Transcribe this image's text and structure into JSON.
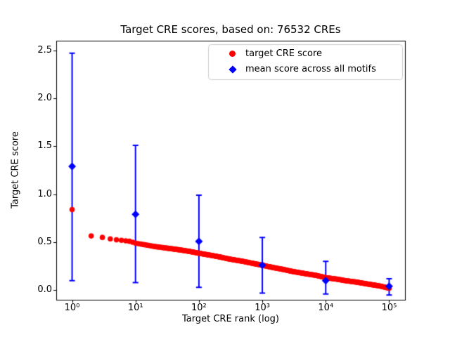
{
  "figure": {
    "title": "Target CRE scores, based on: 76532 CREs",
    "xlabel": "Target CRE rank (log)",
    "ylabel": "Target CRE score",
    "background": "#ffffff"
  },
  "legend": {
    "items": [
      {
        "label": "target CRE score",
        "marker": "circle",
        "color": "#ff0000"
      },
      {
        "label": "mean score across all motifs",
        "marker": "diamond",
        "color": "#0000ff"
      }
    ]
  },
  "axes": {
    "x_scale": "log",
    "xlim_log10": [
      -0.25,
      5.25
    ],
    "ylim": [
      -0.1,
      2.6
    ],
    "x_ticks": [
      {
        "value": 1,
        "label": "10⁰"
      },
      {
        "value": 10,
        "label": "10¹"
      },
      {
        "value": 100,
        "label": "10²"
      },
      {
        "value": 1000,
        "label": "10³"
      },
      {
        "value": 10000,
        "label": "10⁴"
      },
      {
        "value": 100000,
        "label": "10⁵"
      }
    ],
    "y_ticks": [
      {
        "value": 0.0,
        "label": "0.0"
      },
      {
        "value": 0.5,
        "label": "0.5"
      },
      {
        "value": 1.0,
        "label": "1.0"
      },
      {
        "value": 1.5,
        "label": "1.5"
      },
      {
        "value": 2.0,
        "label": "2.0"
      },
      {
        "value": 2.5,
        "label": "2.5"
      }
    ]
  },
  "chart_data": {
    "type": "scatter",
    "title": "Target CRE scores, based on: 76532 CREs",
    "xlabel": "Target CRE rank (log)",
    "ylabel": "Target CRE score",
    "x_scale": "log",
    "xlim_log10": [
      -0.25,
      5.25
    ],
    "ylim": [
      -0.1,
      2.6
    ],
    "grid": false,
    "legend_position": "upper right",
    "total_red_points": 76532,
    "series": [
      {
        "name": "target CRE score",
        "marker": "circle",
        "color": "#ff0000",
        "dense_ranked_curve": true,
        "anchor_points": [
          [
            1,
            0.84
          ],
          [
            2,
            0.565
          ],
          [
            3,
            0.55
          ],
          [
            4,
            0.535
          ],
          [
            5,
            0.525
          ],
          [
            6,
            0.52
          ],
          [
            7,
            0.515
          ],
          [
            8,
            0.51
          ],
          [
            9,
            0.5
          ],
          [
            10,
            0.49
          ],
          [
            15,
            0.47
          ],
          [
            20,
            0.455
          ],
          [
            30,
            0.44
          ],
          [
            50,
            0.42
          ],
          [
            70,
            0.405
          ],
          [
            100,
            0.385
          ],
          [
            150,
            0.365
          ],
          [
            200,
            0.35
          ],
          [
            300,
            0.325
          ],
          [
            500,
            0.3
          ],
          [
            700,
            0.28
          ],
          [
            1000,
            0.26
          ],
          [
            1500,
            0.235
          ],
          [
            2000,
            0.22
          ],
          [
            3000,
            0.195
          ],
          [
            5000,
            0.17
          ],
          [
            7000,
            0.155
          ],
          [
            10000,
            0.13
          ],
          [
            15000,
            0.115
          ],
          [
            20000,
            0.1
          ],
          [
            30000,
            0.085
          ],
          [
            50000,
            0.06
          ],
          [
            70000,
            0.045
          ],
          [
            100000,
            0.02
          ]
        ]
      },
      {
        "name": "mean score across all motifs",
        "marker": "diamond",
        "color": "#0000ff",
        "points": [
          {
            "x": 1,
            "y": 1.29,
            "err_low": 0.1,
            "err_high": 2.47
          },
          {
            "x": 10,
            "y": 0.79,
            "err_low": 0.08,
            "err_high": 1.51
          },
          {
            "x": 100,
            "y": 0.51,
            "err_low": 0.03,
            "err_high": 0.99
          },
          {
            "x": 1000,
            "y": 0.26,
            "err_low": -0.03,
            "err_high": 0.55
          },
          {
            "x": 10000,
            "y": 0.1,
            "err_low": -0.04,
            "err_high": 0.3
          },
          {
            "x": 100000,
            "y": 0.04,
            "err_low": -0.05,
            "err_high": 0.12
          }
        ]
      }
    ]
  }
}
